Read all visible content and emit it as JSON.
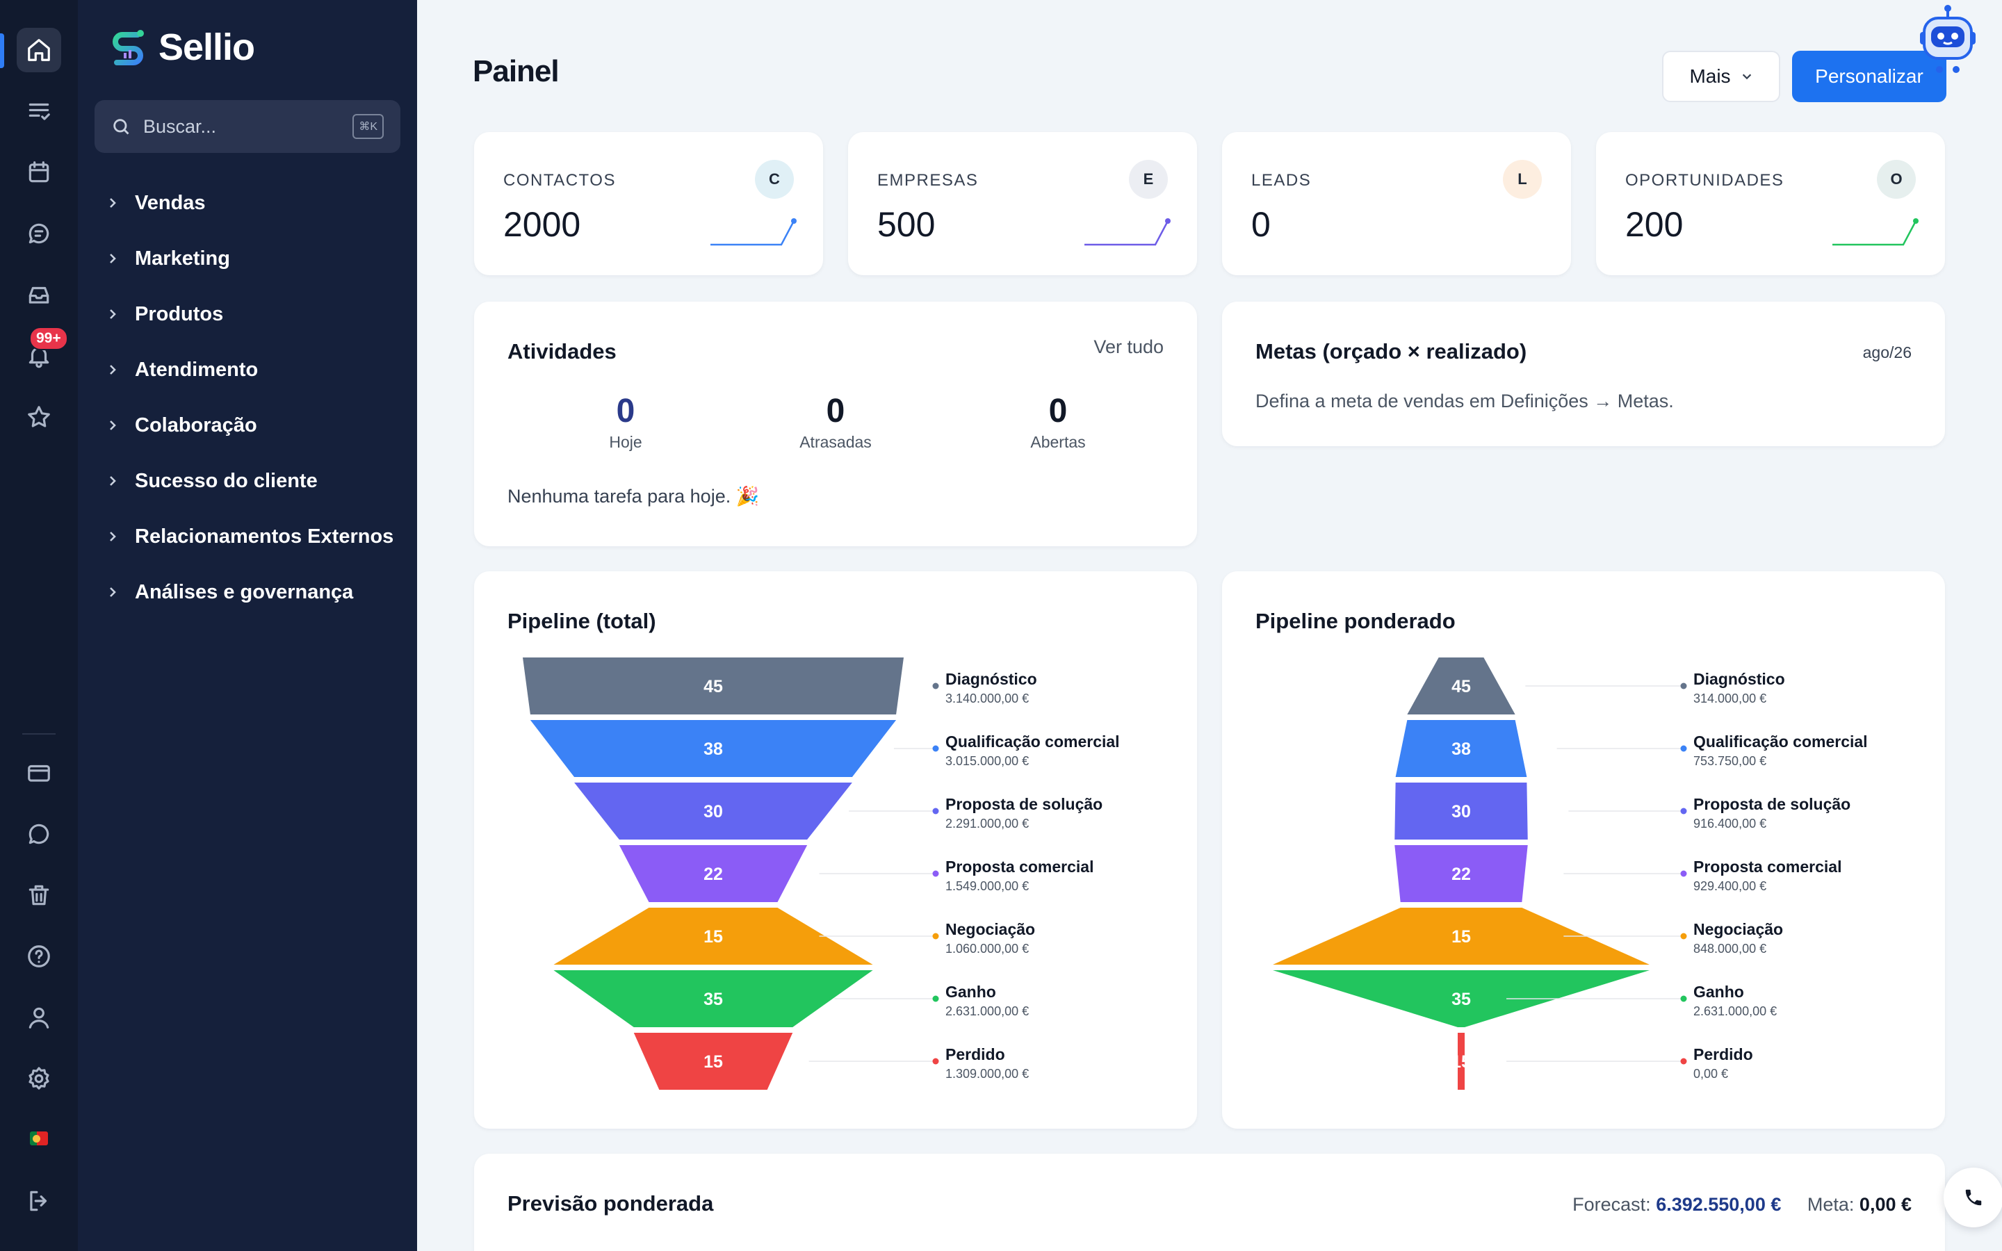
{
  "app": {
    "name": "Sellio",
    "notification_badge": "99+"
  },
  "sidebar": {
    "search_placeholder": "Buscar...",
    "search_shortcut": "⌘K",
    "items": [
      {
        "label": "Vendas"
      },
      {
        "label": "Marketing"
      },
      {
        "label": "Produtos"
      },
      {
        "label": "Atendimento"
      },
      {
        "label": "Colaboração"
      },
      {
        "label": "Sucesso do cliente"
      },
      {
        "label": "Relacionamentos Externos"
      },
      {
        "label": "Análises e governança"
      }
    ]
  },
  "rail": {
    "top_icons": [
      "home-icon",
      "tasks-icon",
      "calendar-icon",
      "chat-icon",
      "inbox-icon",
      "bell-icon",
      "star-icon"
    ],
    "bottom_icons": [
      "card-icon",
      "message-icon",
      "trash-icon",
      "help-icon",
      "user-icon",
      "settings-icon",
      "flag-icon",
      "logout-icon"
    ]
  },
  "header": {
    "title": "Painel",
    "more_label": "Mais",
    "customize_label": "Personalizar"
  },
  "kpis": [
    {
      "label": "CONTACTOS",
      "value": "2000",
      "initial": "C",
      "avatar_color": "#e0f0f6",
      "line_color": "#3b82f6"
    },
    {
      "label": "EMPRESAS",
      "value": "500",
      "initial": "E",
      "avatar_color": "#eceef3",
      "line_color": "#6d5ce7"
    },
    {
      "label": "LEADS",
      "value": "0",
      "initial": "L",
      "avatar_color": "#fdeee0",
      "line_color": ""
    },
    {
      "label": "OPORTUNIDADES",
      "value": "200",
      "initial": "O",
      "avatar_color": "#e6efee",
      "line_color": "#22c55e"
    }
  ],
  "activities": {
    "title": "Atividades",
    "link": "Ver tudo",
    "stats": [
      {
        "value": "0",
        "label": "Hoje"
      },
      {
        "value": "0",
        "label": "Atrasadas"
      },
      {
        "value": "0",
        "label": "Abertas"
      }
    ],
    "note": "Nenhuma tarefa para hoje. 🎉"
  },
  "goals": {
    "title": "Metas (orçado × realizado)",
    "month": "ago/26",
    "text": "Defina a meta de vendas em Definições → Metas."
  },
  "chart_data": [
    {
      "type": "funnel",
      "title": "Pipeline (total)",
      "stages": [
        {
          "name": "Diagnóstico",
          "count": 45,
          "amount": "3.140.000,00 €",
          "value": 3140000,
          "color": "#64748b"
        },
        {
          "name": "Qualificação comercial",
          "count": 38,
          "amount": "3.015.000,00 €",
          "value": 3015000,
          "color": "#3b82f6"
        },
        {
          "name": "Proposta de solução",
          "count": 30,
          "amount": "2.291.000,00 €",
          "value": 2291000,
          "color": "#6366f1"
        },
        {
          "name": "Proposta comercial",
          "count": 22,
          "amount": "1.549.000,00 €",
          "value": 1549000,
          "color": "#8b5cf6"
        },
        {
          "name": "Negociação",
          "count": 15,
          "amount": "1.060.000,00 €",
          "value": 1060000,
          "color": "#f59e0b"
        },
        {
          "name": "Ganho",
          "count": 35,
          "amount": "2.631.000,00 €",
          "value": 2631000,
          "color": "#22c55e"
        },
        {
          "name": "Perdido",
          "count": 15,
          "amount": "1.309.000,00 €",
          "value": 1309000,
          "color": "#ef4444"
        }
      ]
    },
    {
      "type": "funnel",
      "title": "Pipeline ponderado",
      "stages": [
        {
          "name": "Diagnóstico",
          "count": 45,
          "amount": "314.000,00 €",
          "value": 314000,
          "color": "#64748b"
        },
        {
          "name": "Qualificação comercial",
          "count": 38,
          "amount": "753.750,00 €",
          "value": 753750,
          "color": "#3b82f6"
        },
        {
          "name": "Proposta de solução",
          "count": 30,
          "amount": "916.400,00 €",
          "value": 916400,
          "color": "#6366f1"
        },
        {
          "name": "Proposta comercial",
          "count": 22,
          "amount": "929.400,00 €",
          "value": 929400,
          "color": "#8b5cf6"
        },
        {
          "name": "Negociação",
          "count": 15,
          "amount": "848.000,00 €",
          "value": 848000,
          "color": "#f59e0b"
        },
        {
          "name": "Ganho",
          "count": 35,
          "amount": "2.631.000,00 €",
          "value": 2631000,
          "color": "#22c55e"
        },
        {
          "name": "Perdido",
          "count": 15,
          "amount": "0,00 €",
          "value": 0,
          "color": "#ef4444"
        }
      ]
    }
  ],
  "forecast": {
    "title": "Previsão ponderada",
    "forecast_label": "Forecast:",
    "forecast_value": "6.392.550,00 €",
    "meta_label": "Meta:",
    "meta_value": "0,00 €"
  }
}
